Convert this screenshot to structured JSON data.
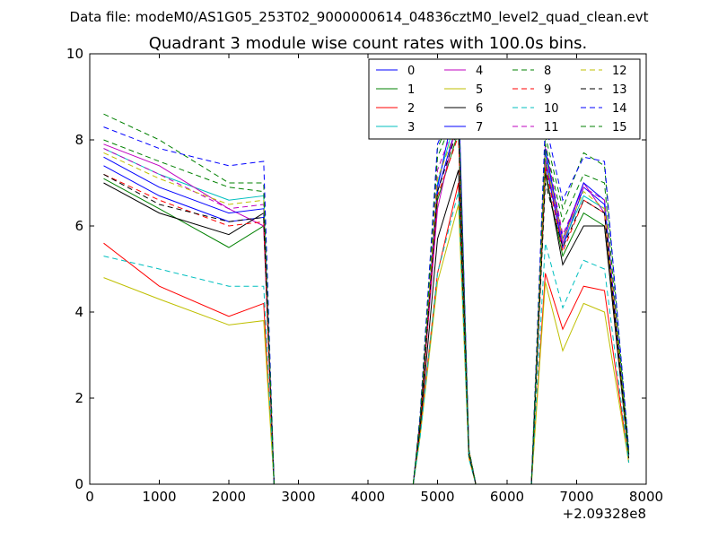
{
  "chart_data": {
    "type": "line",
    "suptitle": "Data file: modeM0/AS1G05_253T02_9000000614_04836cztM0_level2_quad_clean.evt",
    "title": "Quadrant 3 module wise count rates with 100.0s bins.",
    "xlabel": "",
    "ylabel": "",
    "xlim": [
      0,
      8000
    ],
    "ylim": [
      0,
      10
    ],
    "x_offset_label": "+2.09328e8",
    "xticks": [
      "0",
      "1000",
      "2000",
      "3000",
      "4000",
      "5000",
      "6000",
      "7000",
      "8000"
    ],
    "yticks": [
      "0",
      "2",
      "4",
      "6",
      "8",
      "10"
    ],
    "grid": false,
    "legend_position": "top-right",
    "legend_columns": 4,
    "x": [
      200,
      1000,
      2000,
      2500,
      2650,
      4650,
      4750,
      5000,
      5300,
      5450,
      5550,
      6350,
      6550,
      6800,
      7100,
      7400,
      7750
    ],
    "series": [
      {
        "name": "0",
        "color": "#0000ff",
        "dash": "solid",
        "values": [
          7.4,
          6.7,
          6.1,
          6.2,
          0.0,
          0.0,
          1.5,
          6.8,
          8.5,
          0.8,
          0.0,
          0.0,
          7.5,
          5.5,
          6.9,
          6.5,
          0.7
        ]
      },
      {
        "name": "1",
        "color": "#008000",
        "dash": "solid",
        "values": [
          7.1,
          6.4,
          5.5,
          6.0,
          0.0,
          0.0,
          1.4,
          6.6,
          8.2,
          0.8,
          0.0,
          0.0,
          7.2,
          5.3,
          6.3,
          6.0,
          0.7
        ]
      },
      {
        "name": "2",
        "color": "#ff0000",
        "dash": "solid",
        "values": [
          5.6,
          4.6,
          3.9,
          4.2,
          0.0,
          0.0,
          1.2,
          4.9,
          7.0,
          0.7,
          0.0,
          0.0,
          4.9,
          3.6,
          4.6,
          4.5,
          0.5
        ]
      },
      {
        "name": "3",
        "color": "#00bfbf",
        "dash": "solid",
        "values": [
          7.8,
          7.2,
          6.6,
          6.7,
          0.0,
          0.0,
          1.5,
          7.0,
          8.7,
          0.8,
          0.0,
          0.0,
          7.7,
          5.6,
          6.7,
          6.4,
          0.7
        ]
      },
      {
        "name": "4",
        "color": "#bf00bf",
        "dash": "solid",
        "values": [
          7.9,
          7.4,
          6.4,
          6.0,
          0.0,
          0.0,
          1.5,
          6.4,
          8.6,
          0.8,
          0.0,
          0.0,
          7.6,
          5.6,
          7.0,
          6.3,
          0.7
        ]
      },
      {
        "name": "5",
        "color": "#bfbf00",
        "dash": "solid",
        "values": [
          4.8,
          4.3,
          3.7,
          3.8,
          0.0,
          0.0,
          1.1,
          4.7,
          6.5,
          0.6,
          0.0,
          0.0,
          4.7,
          3.1,
          4.2,
          4.0,
          0.5
        ]
      },
      {
        "name": "6",
        "color": "#000000",
        "dash": "solid",
        "values": [
          7.0,
          6.3,
          5.8,
          6.3,
          0.0,
          0.0,
          1.3,
          5.7,
          7.3,
          0.7,
          0.0,
          0.0,
          7.3,
          5.1,
          6.0,
          6.0,
          0.6
        ]
      },
      {
        "name": "7",
        "color": "#0000ff",
        "dash": "solid",
        "values": [
          7.6,
          6.9,
          6.3,
          6.4,
          0.0,
          0.0,
          1.5,
          6.9,
          9.2,
          0.8,
          0.0,
          0.0,
          7.8,
          5.7,
          7.0,
          6.6,
          0.7
        ]
      },
      {
        "name": "8",
        "color": "#008000",
        "dash": "dashed",
        "values": [
          8.6,
          8.0,
          7.0,
          7.0,
          0.0,
          0.0,
          1.6,
          7.8,
          9.0,
          0.8,
          0.0,
          0.0,
          8.1,
          6.4,
          7.7,
          7.4,
          0.8
        ]
      },
      {
        "name": "9",
        "color": "#ff0000",
        "dash": "dashed",
        "values": [
          7.2,
          6.6,
          6.0,
          6.1,
          0.0,
          0.0,
          1.4,
          6.7,
          8.1,
          0.7,
          0.0,
          0.0,
          7.4,
          5.4,
          6.6,
          6.3,
          0.7
        ]
      },
      {
        "name": "10",
        "color": "#00bfbf",
        "dash": "dashed",
        "values": [
          5.3,
          5.0,
          4.6,
          4.6,
          0.0,
          0.0,
          1.1,
          4.9,
          6.8,
          0.6,
          0.0,
          0.0,
          5.6,
          4.1,
          5.2,
          5.0,
          0.5
        ]
      },
      {
        "name": "11",
        "color": "#bf00bf",
        "dash": "dashed",
        "values": [
          7.8,
          7.2,
          6.4,
          6.5,
          0.0,
          0.0,
          1.5,
          7.3,
          8.6,
          0.8,
          0.0,
          0.0,
          7.9,
          5.8,
          6.9,
          6.6,
          0.7
        ]
      },
      {
        "name": "12",
        "color": "#bfbf00",
        "dash": "dashed",
        "values": [
          7.7,
          7.1,
          6.5,
          6.6,
          0.0,
          0.0,
          1.5,
          7.1,
          8.4,
          0.8,
          0.0,
          0.0,
          7.6,
          5.7,
          6.8,
          6.4,
          0.7
        ]
      },
      {
        "name": "13",
        "color": "#000000",
        "dash": "dashed",
        "values": [
          7.2,
          6.5,
          6.1,
          6.2,
          0.0,
          0.0,
          1.4,
          6.8,
          8.3,
          0.7,
          0.0,
          0.0,
          7.0,
          5.5,
          6.6,
          6.3,
          0.7
        ]
      },
      {
        "name": "14",
        "color": "#0000ff",
        "dash": "dashed",
        "values": [
          8.3,
          7.8,
          7.4,
          7.5,
          0.0,
          0.0,
          1.6,
          7.9,
          9.1,
          0.8,
          0.0,
          0.0,
          8.4,
          6.6,
          7.6,
          7.5,
          0.8
        ]
      },
      {
        "name": "15",
        "color": "#008000",
        "dash": "dashed",
        "values": [
          8.0,
          7.5,
          6.9,
          6.8,
          0.0,
          0.0,
          1.5,
          7.6,
          8.8,
          0.8,
          0.0,
          0.0,
          7.9,
          6.1,
          7.2,
          7.0,
          0.7
        ]
      }
    ]
  }
}
